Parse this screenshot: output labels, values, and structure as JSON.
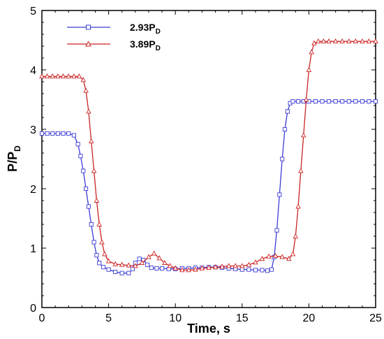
{
  "chart_data": {
    "type": "line",
    "title": "",
    "xlabel": "Time, s",
    "ylabel_main": "P/P",
    "ylabel_sub": "D",
    "xlim": [
      0,
      25
    ],
    "ylim": [
      0,
      5
    ],
    "x_ticks": [
      0,
      5,
      10,
      15,
      20,
      25
    ],
    "y_ticks": [
      0,
      1,
      2,
      3,
      4,
      5
    ],
    "grid": false,
    "legend_position": "top-left",
    "series": [
      {
        "name_main": "2.93P",
        "name_sub": "D",
        "color": "#3b3bd6",
        "marker": "square",
        "points": [
          [
            0,
            2.93
          ],
          [
            0.4,
            2.93
          ],
          [
            0.8,
            2.93
          ],
          [
            1.2,
            2.93
          ],
          [
            1.6,
            2.93
          ],
          [
            2.0,
            2.93
          ],
          [
            2.4,
            2.9
          ],
          [
            2.7,
            2.75
          ],
          [
            2.9,
            2.55
          ],
          [
            3.1,
            2.3
          ],
          [
            3.3,
            2.0
          ],
          [
            3.5,
            1.7
          ],
          [
            3.7,
            1.4
          ],
          [
            3.9,
            1.1
          ],
          [
            4.1,
            0.88
          ],
          [
            4.3,
            0.75
          ],
          [
            4.6,
            0.68
          ],
          [
            5.0,
            0.64
          ],
          [
            5.5,
            0.6
          ],
          [
            6.0,
            0.58
          ],
          [
            6.5,
            0.58
          ],
          [
            6.8,
            0.65
          ],
          [
            7.0,
            0.75
          ],
          [
            7.3,
            0.82
          ],
          [
            7.6,
            0.8
          ],
          [
            7.9,
            0.72
          ],
          [
            8.2,
            0.67
          ],
          [
            8.6,
            0.66
          ],
          [
            9.0,
            0.66
          ],
          [
            9.5,
            0.65
          ],
          [
            10.0,
            0.65
          ],
          [
            10.5,
            0.66
          ],
          [
            11.0,
            0.66
          ],
          [
            11.5,
            0.67
          ],
          [
            12.0,
            0.67
          ],
          [
            12.5,
            0.68
          ],
          [
            13.0,
            0.68
          ],
          [
            13.5,
            0.67
          ],
          [
            14.0,
            0.66
          ],
          [
            14.5,
            0.65
          ],
          [
            15.0,
            0.64
          ],
          [
            15.5,
            0.64
          ],
          [
            16.0,
            0.63
          ],
          [
            16.5,
            0.63
          ],
          [
            16.9,
            0.62
          ],
          [
            17.2,
            0.64
          ],
          [
            17.4,
            0.85
          ],
          [
            17.6,
            1.3
          ],
          [
            17.8,
            1.9
          ],
          [
            18.0,
            2.5
          ],
          [
            18.2,
            3.0
          ],
          [
            18.4,
            3.3
          ],
          [
            18.6,
            3.44
          ],
          [
            18.8,
            3.47
          ],
          [
            19.2,
            3.47
          ],
          [
            19.6,
            3.47
          ],
          [
            20.0,
            3.47
          ],
          [
            20.5,
            3.47
          ],
          [
            21.0,
            3.47
          ],
          [
            21.5,
            3.47
          ],
          [
            22.0,
            3.47
          ],
          [
            22.5,
            3.47
          ],
          [
            23.0,
            3.47
          ],
          [
            23.5,
            3.47
          ],
          [
            24.0,
            3.47
          ],
          [
            24.5,
            3.47
          ],
          [
            25.0,
            3.47
          ]
        ]
      },
      {
        "name_main": "3.89P",
        "name_sub": "D",
        "color": "#cc2222",
        "marker": "triangle",
        "points": [
          [
            0,
            3.89
          ],
          [
            0.4,
            3.89
          ],
          [
            0.8,
            3.89
          ],
          [
            1.2,
            3.89
          ],
          [
            1.6,
            3.89
          ],
          [
            2.0,
            3.89
          ],
          [
            2.4,
            3.89
          ],
          [
            2.8,
            3.89
          ],
          [
            3.1,
            3.83
          ],
          [
            3.3,
            3.65
          ],
          [
            3.5,
            3.3
          ],
          [
            3.7,
            2.8
          ],
          [
            3.9,
            2.3
          ],
          [
            4.1,
            1.8
          ],
          [
            4.3,
            1.4
          ],
          [
            4.5,
            1.1
          ],
          [
            4.7,
            0.9
          ],
          [
            5.0,
            0.78
          ],
          [
            5.5,
            0.73
          ],
          [
            6.0,
            0.72
          ],
          [
            6.5,
            0.71
          ],
          [
            7.0,
            0.7
          ],
          [
            7.5,
            0.75
          ],
          [
            8.0,
            0.85
          ],
          [
            8.4,
            0.91
          ],
          [
            8.8,
            0.83
          ],
          [
            9.2,
            0.75
          ],
          [
            9.6,
            0.7
          ],
          [
            10.0,
            0.66
          ],
          [
            10.5,
            0.63
          ],
          [
            11.0,
            0.63
          ],
          [
            11.5,
            0.64
          ],
          [
            12.0,
            0.66
          ],
          [
            12.5,
            0.67
          ],
          [
            13.0,
            0.68
          ],
          [
            13.5,
            0.69
          ],
          [
            14.0,
            0.7
          ],
          [
            14.5,
            0.7
          ],
          [
            15.0,
            0.7
          ],
          [
            15.5,
            0.72
          ],
          [
            16.0,
            0.76
          ],
          [
            16.5,
            0.82
          ],
          [
            17.0,
            0.86
          ],
          [
            17.5,
            0.87
          ],
          [
            18.0,
            0.85
          ],
          [
            18.5,
            0.82
          ],
          [
            18.8,
            0.9
          ],
          [
            19.0,
            1.2
          ],
          [
            19.2,
            1.7
          ],
          [
            19.4,
            2.3
          ],
          [
            19.6,
            2.9
          ],
          [
            19.8,
            3.5
          ],
          [
            20.0,
            4.0
          ],
          [
            20.2,
            4.3
          ],
          [
            20.4,
            4.45
          ],
          [
            20.7,
            4.48
          ],
          [
            21.1,
            4.48
          ],
          [
            21.5,
            4.48
          ],
          [
            22.0,
            4.48
          ],
          [
            22.5,
            4.48
          ],
          [
            23.0,
            4.48
          ],
          [
            23.5,
            4.48
          ],
          [
            24.0,
            4.48
          ],
          [
            24.5,
            4.48
          ],
          [
            25.0,
            4.48
          ]
        ]
      }
    ]
  }
}
